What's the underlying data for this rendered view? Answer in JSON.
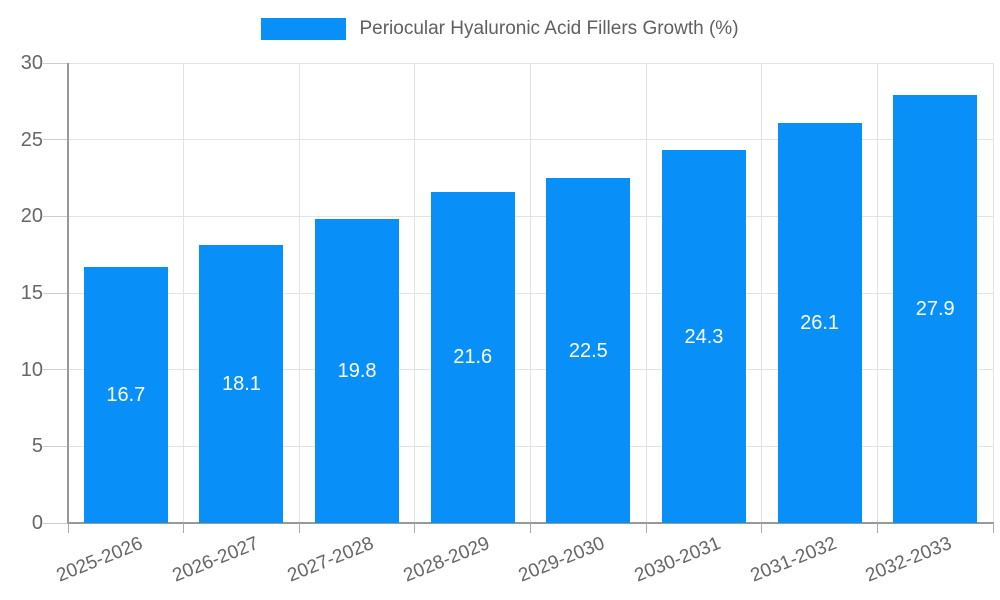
{
  "legend": {
    "label": "Periocular Hyaluronic Acid Fillers Growth (%)"
  },
  "chart_data": {
    "type": "bar",
    "title": "Periocular Hyaluronic Acid Fillers Growth (%)",
    "categories": [
      "2025-2026",
      "2026-2027",
      "2027-2028",
      "2028-2029",
      "2029-2030",
      "2030-2031",
      "2031-2032",
      "2032-2033"
    ],
    "values": [
      16.7,
      18.1,
      19.8,
      21.6,
      22.5,
      24.3,
      26.1,
      27.9
    ],
    "value_labels": [
      "16.7",
      "18.1",
      "19.8",
      "21.6",
      "22.5",
      "24.3",
      "26.1",
      "27.9"
    ],
    "xlabel": "",
    "ylabel": "",
    "ylim": [
      0,
      30
    ],
    "yticks": [
      0,
      5,
      10,
      15,
      20,
      25,
      30
    ],
    "ytick_labels": [
      "0",
      "5",
      "10",
      "15",
      "20",
      "25",
      "30"
    ],
    "grid": true,
    "legend_position": "top-center",
    "colors": {
      "bar": "#0890F8",
      "value_label": "#ffffff",
      "axis_line": "#999999",
      "grid_line": "#e3e3e3",
      "tick_mark": "#cccccc",
      "x_tick_mark": "#aaaaaa",
      "tick_label": "#666666",
      "legend_text": "#5f5f5f",
      "background": "#ffffff"
    }
  }
}
